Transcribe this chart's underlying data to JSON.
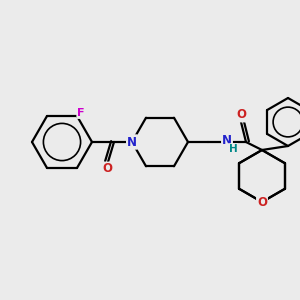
{
  "background_color": "#ebebeb",
  "atom_colors": {
    "C": "#000000",
    "N": "#2222cc",
    "O": "#cc2222",
    "F": "#cc00cc",
    "H": "#008888"
  },
  "bond_color": "#000000",
  "bond_lw": 1.6,
  "figsize": [
    3.0,
    3.0
  ],
  "dpi": 100
}
